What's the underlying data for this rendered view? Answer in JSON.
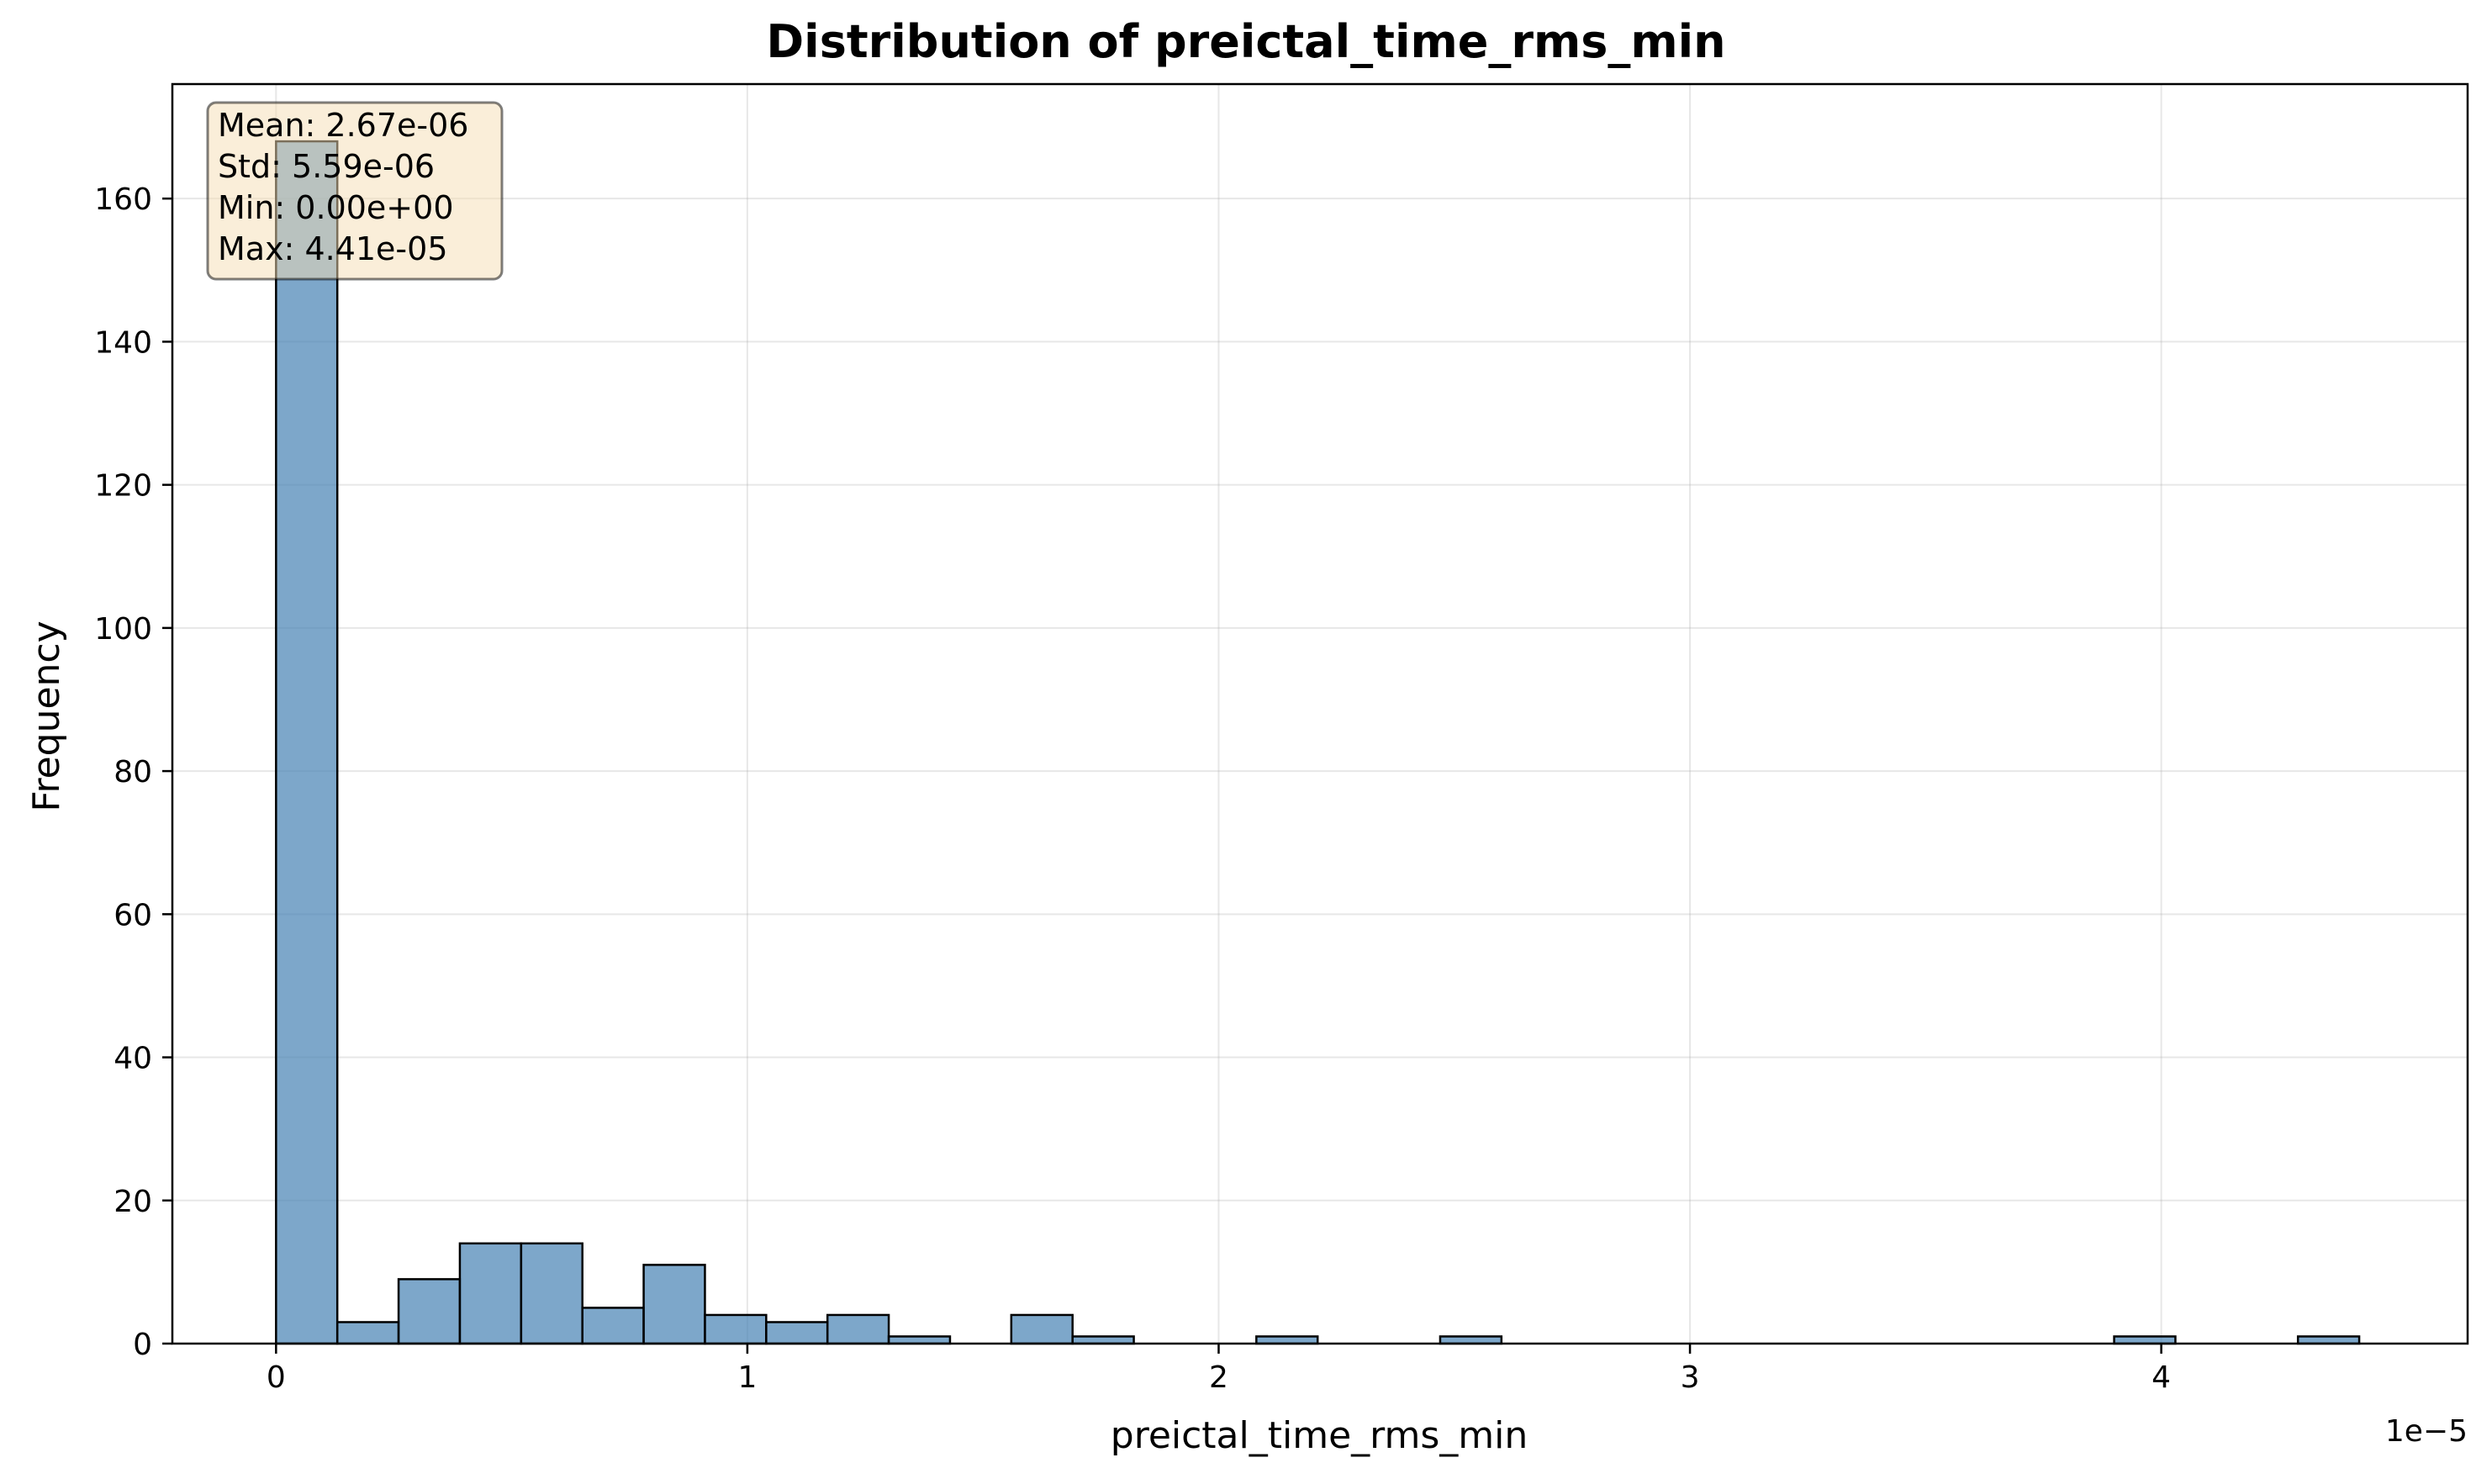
{
  "chart_data": {
    "type": "bar",
    "title": "Distribution of preictal_time_rms_min",
    "xlabel": "preictal_time_rms_min",
    "ylabel": "Frequency",
    "x_offset_label": "1e−5",
    "xlim": [
      -0.22,
      4.65
    ],
    "ylim": [
      0,
      176
    ],
    "x_ticks": [
      0,
      1,
      2,
      3,
      4
    ],
    "x_tick_labels": [
      "0",
      "1",
      "2",
      "3",
      "4"
    ],
    "y_ticks": [
      0,
      20,
      40,
      60,
      80,
      100,
      120,
      140,
      160
    ],
    "y_tick_labels": [
      "0",
      "20",
      "40",
      "60",
      "80",
      "100",
      "120",
      "140",
      "160"
    ],
    "grid": true,
    "bar_color": "#4682b4",
    "bar_edge_color": "#000000",
    "bin_start": 0,
    "bin_width": 0.13,
    "values": [
      168,
      3,
      9,
      14,
      14,
      5,
      11,
      4,
      3,
      4,
      1,
      0,
      4,
      1,
      0,
      0,
      1,
      0,
      0,
      1,
      0,
      0,
      0,
      0,
      0,
      0,
      0,
      0,
      0,
      0,
      1,
      0,
      0,
      1
    ],
    "stats_box": {
      "lines": [
        "Mean: 2.67e-06",
        "Std: 5.59e-06",
        "Min: 0.00e+00",
        "Max: 4.41e-05"
      ],
      "face_color": "#f5deb3",
      "location": "top-left"
    }
  }
}
